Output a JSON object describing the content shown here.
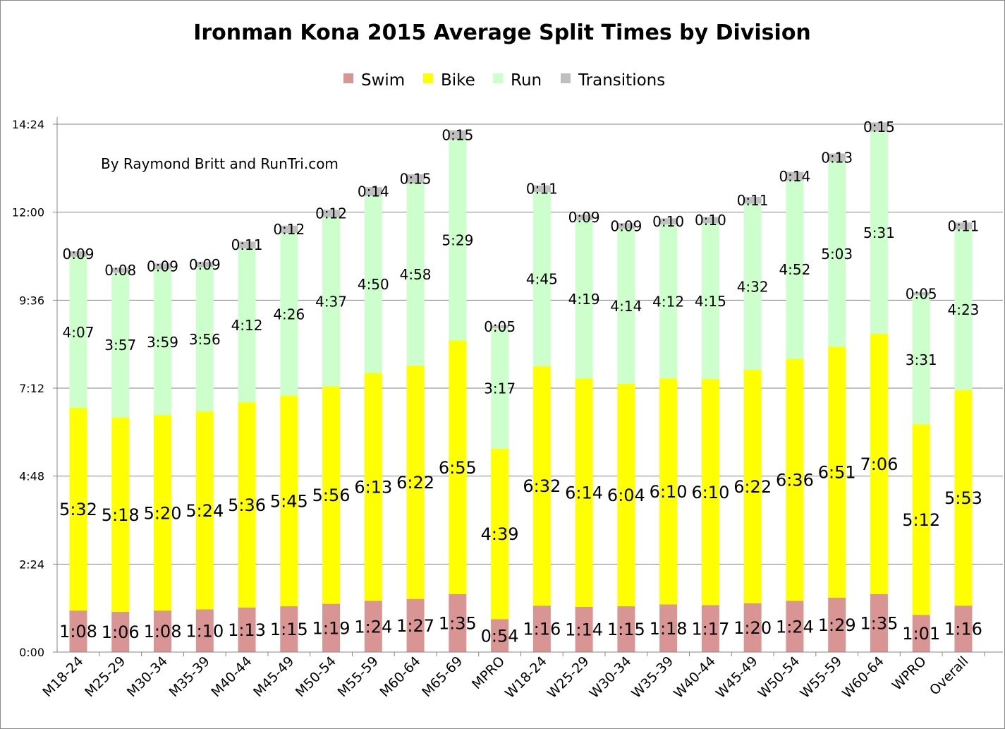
{
  "chart_data": {
    "type": "bar",
    "stacked": true,
    "title": "Ironman Kona 2015 Average Split Times by Division",
    "annotation": "By Raymond Britt and RunTri.com",
    "legend_position": "top",
    "grid": true,
    "ylim": [
      "0:00",
      "14:24"
    ],
    "y_ticks": [
      "0:00",
      "2:24",
      "4:48",
      "7:12",
      "9:36",
      "12:00",
      "14:24"
    ],
    "categories": [
      "M18-24",
      "M25-29",
      "M30-34",
      "M35-39",
      "M40-44",
      "M45-49",
      "M50-54",
      "M55-59",
      "M60-64",
      "M65-69",
      "MPRO",
      "W18-24",
      "W25-29",
      "W30-34",
      "W35-39",
      "W40-44",
      "W45-49",
      "W50-54",
      "W55-59",
      "W60-64",
      "WPRO",
      "Overall"
    ],
    "series": [
      {
        "name": "Swim",
        "color": "#d99594",
        "values": [
          "1:08",
          "1:06",
          "1:08",
          "1:10",
          "1:13",
          "1:15",
          "1:19",
          "1:24",
          "1:27",
          "1:35",
          "0:54",
          "1:16",
          "1:14",
          "1:15",
          "1:18",
          "1:17",
          "1:20",
          "1:24",
          "1:29",
          "1:35",
          "1:01",
          "1:16"
        ]
      },
      {
        "name": "Bike",
        "color": "#ffff00",
        "values": [
          "5:32",
          "5:18",
          "5:20",
          "5:24",
          "5:36",
          "5:45",
          "5:56",
          "6:13",
          "6:22",
          "6:55",
          "4:39",
          "6:32",
          "6:14",
          "6:04",
          "6:10",
          "6:10",
          "6:22",
          "6:36",
          "6:51",
          "7:06",
          "5:12",
          "5:53"
        ]
      },
      {
        "name": "Run",
        "color": "#ccffcc",
        "values": [
          "4:07",
          "3:57",
          "3:59",
          "3:56",
          "4:12",
          "4:26",
          "4:37",
          "4:50",
          "4:58",
          "5:29",
          "3:17",
          "4:45",
          "4:19",
          "4:14",
          "4:12",
          "4:15",
          "4:32",
          "4:52",
          "5:03",
          "5:31",
          "3:31",
          "4:23"
        ]
      },
      {
        "name": "Transitions",
        "color": "#bfbfbf",
        "values": [
          "0:09",
          "0:08",
          "0:09",
          "0:09",
          "0:11",
          "0:12",
          "0:12",
          "0:14",
          "0:15",
          "0:15",
          "0:05",
          "0:11",
          "0:09",
          "0:09",
          "0:10",
          "0:10",
          "0:11",
          "0:14",
          "0:13",
          "0:15",
          "0:05",
          "0:11"
        ]
      }
    ]
  }
}
